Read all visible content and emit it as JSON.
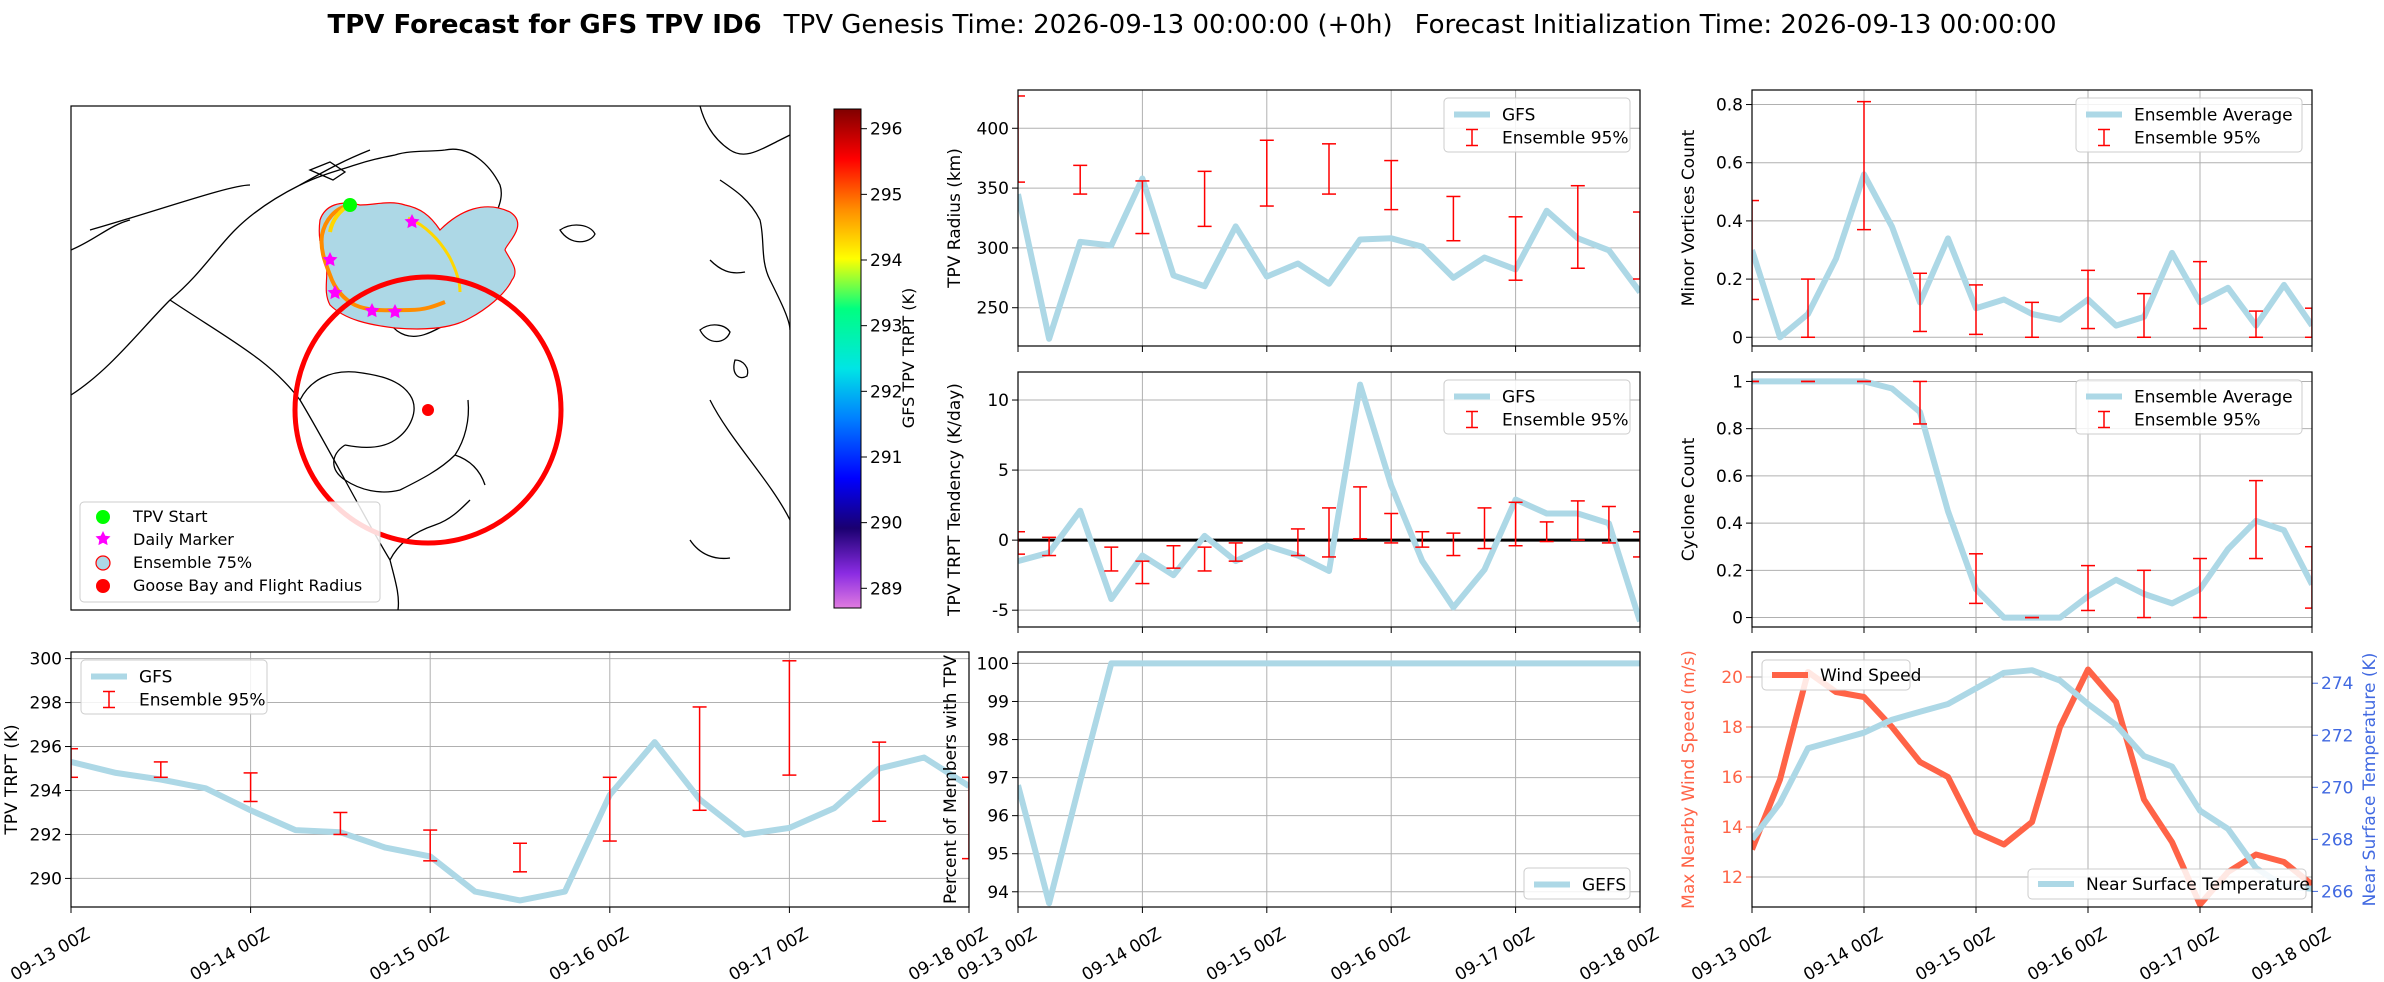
{
  "header": {
    "title_bold": "TPV Forecast for GFS TPV ID6",
    "genesis": "TPV Genesis Time: 2026-09-13 00:00:00 (+0h)",
    "init": "Forecast Initialization Time: 2026-09-13 00:00:00"
  },
  "colors": {
    "light_blue": "#add8e6",
    "red": "#ff0000",
    "tomato": "#ff6347",
    "royal_blue": "#4169e1",
    "green": "#00ff00",
    "magenta": "#ff00ff"
  },
  "date_ticks": [
    "09-13 00Z",
    "09-14 00Z",
    "09-15 00Z",
    "09-16 00Z",
    "09-17 00Z",
    "09-18 00Z"
  ],
  "map": {
    "legend": [
      "TPV Start",
      "Daily Marker",
      "Ensemble 75%",
      "Goose Bay and Flight Radius"
    ],
    "colorbar": {
      "label": "GFS TPV TRPT (K)",
      "ticks": [
        "289",
        "290",
        "291",
        "292",
        "293",
        "294",
        "295",
        "296"
      ],
      "range": [
        288.7,
        296.3
      ]
    }
  },
  "chart_data": [
    {
      "id": "radius",
      "type": "line",
      "ylabel": "TPV Radius (km)",
      "ylim": [
        218,
        432
      ],
      "yticks": [
        250,
        300,
        350,
        400
      ],
      "legend": [
        "GFS",
        "Ensemble 95%"
      ],
      "legend_loc": "upper right",
      "x": [
        0,
        0.25,
        0.5,
        0.75,
        1,
        1.25,
        1.5,
        1.75,
        2,
        2.25,
        2.5,
        2.75,
        3,
        3.25,
        3.5,
        3.75,
        4,
        4.25,
        4.5,
        4.75,
        5
      ],
      "series": [
        {
          "name": "GFS",
          "values": [
            345,
            224,
            305,
            302,
            358,
            277,
            268,
            318,
            276,
            287,
            270,
            307,
            308,
            301,
            275,
            292,
            282,
            331,
            308,
            298,
            263
          ]
        }
      ],
      "errorbars": [
        [
          0,
          355,
          427
        ],
        [
          0.5,
          345,
          369
        ],
        [
          1,
          312,
          356
        ],
        [
          1.5,
          318,
          364
        ],
        [
          2,
          335,
          390
        ],
        [
          2.5,
          345,
          387
        ],
        [
          3,
          332,
          373
        ],
        [
          3.5,
          306,
          343
        ],
        [
          4,
          273,
          326
        ],
        [
          4.5,
          283,
          352
        ],
        [
          5,
          274,
          330
        ]
      ]
    },
    {
      "id": "tendency",
      "type": "line",
      "ylabel": "TPV TRPT Tendency (K/day)",
      "ylim": [
        -6.2,
        12
      ],
      "yticks": [
        -5,
        0,
        5,
        10
      ],
      "hline": 0,
      "legend": [
        "GFS",
        "Ensemble 95%"
      ],
      "legend_loc": "upper right",
      "x": [
        0,
        0.25,
        0.5,
        0.75,
        1,
        1.25,
        1.5,
        1.75,
        2,
        2.25,
        2.5,
        2.75,
        3,
        3.25,
        3.5,
        3.75,
        4,
        4.25,
        4.5,
        4.75,
        5
      ],
      "series": [
        {
          "name": "GFS",
          "values": [
            -1.5,
            -0.9,
            2.1,
            -4.2,
            -1.1,
            -2.5,
            0.3,
            -1.5,
            -0.4,
            -1.1,
            -2.2,
            11.1,
            3.9,
            -1.5,
            -4.8,
            -2.1,
            2.9,
            1.9,
            1.9,
            1.2,
            -5.8
          ]
        }
      ],
      "errorbars": [
        [
          0,
          -1.0,
          0.6
        ],
        [
          0.25,
          -1.1,
          0.2
        ],
        [
          0.75,
          -2.2,
          -0.5
        ],
        [
          1,
          -3.1,
          -1.5
        ],
        [
          1.25,
          -2.0,
          -0.4
        ],
        [
          1.5,
          -2.2,
          -0.5
        ],
        [
          1.75,
          -1.5,
          -0.2
        ],
        [
          2.25,
          -1.1,
          0.8
        ],
        [
          2.5,
          -1.2,
          2.3
        ],
        [
          2.75,
          0.1,
          3.8
        ],
        [
          3,
          -0.2,
          1.9
        ],
        [
          3.25,
          -0.5,
          0.6
        ],
        [
          3.5,
          -1.1,
          0.5
        ],
        [
          3.75,
          -0.6,
          2.3
        ],
        [
          4,
          -0.4,
          2.7
        ],
        [
          4.25,
          -0.1,
          1.3
        ],
        [
          4.5,
          0.0,
          2.8
        ],
        [
          4.75,
          -0.2,
          2.4
        ],
        [
          5,
          -1.2,
          0.6
        ]
      ]
    },
    {
      "id": "trpt",
      "type": "line",
      "ylabel": "TPV TRPT (K)",
      "ylim": [
        288.7,
        300.3
      ],
      "yticks": [
        290,
        292,
        294,
        296,
        298,
        300
      ],
      "legend": [
        "GFS",
        "Ensemble 95%"
      ],
      "legend_loc": "upper left",
      "x": [
        0,
        0.25,
        0.5,
        0.75,
        1,
        1.25,
        1.5,
        1.75,
        2,
        2.25,
        2.5,
        2.75,
        3,
        3.25,
        3.5,
        3.75,
        4,
        4.25,
        4.5,
        4.75,
        5
      ],
      "series": [
        {
          "name": "GFS",
          "values": [
            295.3,
            294.8,
            294.5,
            294.1,
            293.1,
            292.2,
            292.1,
            291.4,
            291.0,
            289.4,
            289.0,
            289.4,
            293.8,
            296.2,
            293.6,
            292.0,
            292.3,
            293.2,
            295.0,
            295.5,
            294.2
          ]
        }
      ],
      "errorbars": [
        [
          0,
          294.6,
          295.9
        ],
        [
          0.5,
          294.6,
          295.3
        ],
        [
          1,
          293.5,
          294.8
        ],
        [
          1.5,
          292.0,
          293.0
        ],
        [
          2,
          290.8,
          292.2
        ],
        [
          2.5,
          290.3,
          291.6
        ],
        [
          3,
          291.7,
          294.6
        ],
        [
          3.5,
          293.1,
          297.8
        ],
        [
          4,
          294.7,
          299.9
        ],
        [
          4.5,
          292.6,
          296.2
        ],
        [
          5,
          290.9,
          294.6
        ]
      ]
    },
    {
      "id": "percent",
      "type": "line",
      "ylabel": "Percent of Members with TPV",
      "ylim": [
        93.6,
        100.3
      ],
      "yticks": [
        94,
        95,
        96,
        97,
        98,
        99,
        100
      ],
      "legend": [
        "GEFS"
      ],
      "legend_loc": "lower right",
      "x": [
        0,
        0.25,
        0.5,
        0.75,
        1,
        1.25,
        1.5,
        1.75,
        2,
        2.25,
        2.5,
        2.75,
        3,
        3.25,
        3.5,
        3.75,
        4,
        4.25,
        4.5,
        4.75,
        5
      ],
      "series": [
        {
          "name": "GEFS",
          "values": [
            96.8,
            93.7,
            96.9,
            100,
            100,
            100,
            100,
            100,
            100,
            100,
            100,
            100,
            100,
            100,
            100,
            100,
            100,
            100,
            100,
            100,
            100
          ]
        }
      ]
    },
    {
      "id": "minor",
      "type": "line",
      "ylabel": "Minor Vortices Count",
      "ylim": [
        -0.03,
        0.85
      ],
      "yticks": [
        0.0,
        0.2,
        0.4,
        0.6,
        0.8
      ],
      "legend": [
        "Ensemble Average",
        "Ensemble 95%"
      ],
      "legend_loc": "upper right",
      "x": [
        0,
        0.25,
        0.5,
        0.75,
        1,
        1.25,
        1.5,
        1.75,
        2,
        2.25,
        2.5,
        2.75,
        3,
        3.25,
        3.5,
        3.75,
        4,
        4.25,
        4.5,
        4.75,
        5
      ],
      "series": [
        {
          "name": "Ensemble Average",
          "values": [
            0.3,
            0.0,
            0.08,
            0.27,
            0.56,
            0.38,
            0.12,
            0.34,
            0.1,
            0.13,
            0.08,
            0.06,
            0.13,
            0.04,
            0.07,
            0.29,
            0.12,
            0.17,
            0.04,
            0.18,
            0.04
          ]
        }
      ],
      "errorbars": [
        [
          0,
          0.13,
          0.47
        ],
        [
          0.5,
          0.0,
          0.2
        ],
        [
          1,
          0.37,
          0.81
        ],
        [
          1.5,
          0.02,
          0.22
        ],
        [
          2,
          0.01,
          0.18
        ],
        [
          2.5,
          0.0,
          0.12
        ],
        [
          3,
          0.03,
          0.23
        ],
        [
          3.5,
          0.0,
          0.15
        ],
        [
          4,
          0.03,
          0.26
        ],
        [
          4.5,
          0.0,
          0.09
        ],
        [
          5,
          0.0,
          0.1
        ]
      ]
    },
    {
      "id": "cyclone",
      "type": "line",
      "ylabel": "Cyclone Count",
      "ylim": [
        -0.04,
        1.04
      ],
      "yticks": [
        0.0,
        0.2,
        0.4,
        0.6,
        0.8,
        1.0
      ],
      "legend": [
        "Ensemble Average",
        "Ensemble 95%"
      ],
      "legend_loc": "upper right",
      "x": [
        0,
        0.25,
        0.5,
        0.75,
        1,
        1.25,
        1.5,
        1.75,
        2,
        2.25,
        2.5,
        2.75,
        3,
        3.25,
        3.5,
        3.75,
        4,
        4.25,
        4.5,
        4.75,
        5
      ],
      "series": [
        {
          "name": "Ensemble Average",
          "values": [
            1.0,
            1.0,
            1.0,
            1.0,
            1.0,
            0.97,
            0.87,
            0.45,
            0.12,
            0.0,
            0.0,
            0.0,
            0.09,
            0.16,
            0.1,
            0.06,
            0.12,
            0.29,
            0.41,
            0.37,
            0.14
          ]
        }
      ],
      "errorbars": [
        [
          0,
          1.0,
          1.0
        ],
        [
          0.5,
          1.0,
          1.0
        ],
        [
          1,
          1.0,
          1.0
        ],
        [
          1.5,
          0.82,
          1.0
        ],
        [
          2,
          0.06,
          0.27
        ],
        [
          2.5,
          0.0,
          0.0
        ],
        [
          3,
          0.03,
          0.22
        ],
        [
          3.5,
          0.0,
          0.2
        ],
        [
          4,
          0.0,
          0.25
        ],
        [
          4.5,
          0.25,
          0.58
        ],
        [
          5,
          0.04,
          0.3
        ]
      ]
    },
    {
      "id": "wind",
      "type": "line",
      "ylabel": "Max Nearby Wind Speed (m/s)",
      "ylabel_right": "Near Surface Temperature (K)",
      "ylim": [
        10.8,
        21
      ],
      "yticks": [
        12,
        14,
        16,
        18,
        20
      ],
      "ylim_right": [
        265.4,
        275.2
      ],
      "yticks_right": [
        266,
        268,
        270,
        272,
        274
      ],
      "legend": [
        "Wind Speed"
      ],
      "legend_right": [
        "Near Surface Temperature"
      ],
      "x": [
        0,
        0.25,
        0.5,
        0.75,
        1,
        1.25,
        1.5,
        1.75,
        2,
        2.25,
        2.5,
        2.75,
        3,
        3.25,
        3.5,
        3.75,
        4,
        4.25,
        4.5,
        4.75,
        5
      ],
      "series": [
        {
          "name": "Wind Speed",
          "axis": "left",
          "values": [
            13.1,
            15.9,
            20.2,
            19.4,
            19.2,
            18.0,
            16.6,
            16.0,
            13.8,
            13.3,
            14.2,
            18.0,
            20.3,
            19.0,
            15.1,
            13.4,
            10.9,
            12.2,
            12.9,
            12.6,
            11.7
          ]
        },
        {
          "name": "Near Surface Temperature",
          "axis": "right",
          "values": [
            268.0,
            269.4,
            271.5,
            271.8,
            272.1,
            272.6,
            272.9,
            273.2,
            273.8,
            274.4,
            274.5,
            274.1,
            273.2,
            272.4,
            271.2,
            270.8,
            269.1,
            268.4,
            266.9,
            266.2,
            266.1
          ]
        }
      ]
    }
  ]
}
